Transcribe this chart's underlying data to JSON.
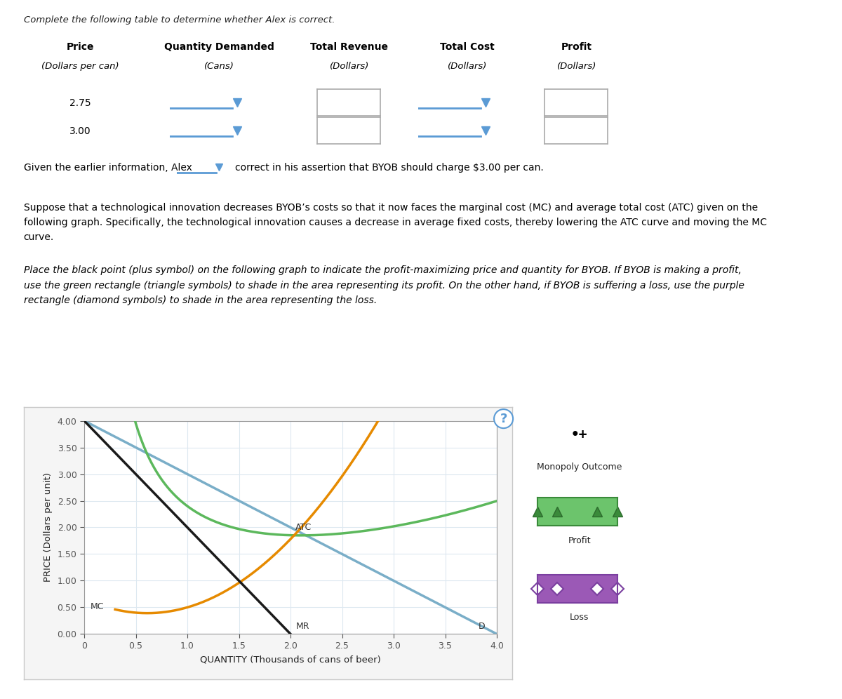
{
  "title_text": "Complete the following table to determine whether Alex is correct.",
  "table_headers": [
    "Price",
    "Quantity Demanded",
    "Total Revenue",
    "Total Cost",
    "Profit"
  ],
  "table_subheaders": [
    "(Dollars per can)",
    "(Cans)",
    "(Dollars)",
    "(Dollars)",
    "(Dollars)"
  ],
  "table_rows": [
    "2.75",
    "3.00"
  ],
  "caption1": "Given the earlier information, Alex",
  "caption2": "correct in his assertion that BYOB should charge $3.00 per can.",
  "graph_xlim": [
    0,
    4.0
  ],
  "graph_ylim": [
    0,
    4.0
  ],
  "graph_xlabel": "QUANTITY (Thousands of cans of beer)",
  "graph_ylabel": "PRICE (Dollars per unit)",
  "D_color": "#7aaec8",
  "MR_color": "#1a1a1a",
  "ATC_color": "#5cb85c",
  "MC_color": "#e68a00",
  "legend_profit_color": "#6cc46c",
  "legend_loss_color": "#9b59b6",
  "bg_color": "#ffffff",
  "grid_color": "#dde8f0",
  "tick_color": "#555555"
}
